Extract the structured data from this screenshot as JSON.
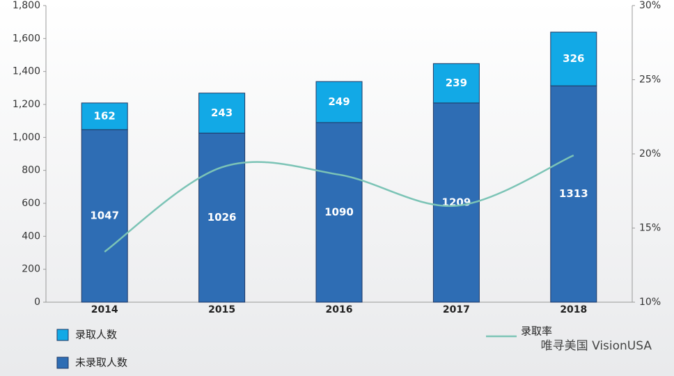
{
  "chart_data": {
    "type": "bar",
    "stacked": true,
    "categories": [
      "2014",
      "2015",
      "2016",
      "2017",
      "2018"
    ],
    "series": [
      {
        "name": "未录取人数",
        "color": "#2e6db4",
        "values": [
          1047,
          1026,
          1090,
          1209,
          1313
        ]
      },
      {
        "name": "录取人数",
        "color": "#12a9e6",
        "values": [
          162,
          243,
          249,
          239,
          326
        ]
      },
      {
        "name": "录取率",
        "type": "line",
        "axis": "y2",
        "color": "#7cc4b6",
        "values": [
          13.4,
          19.1,
          18.6,
          16.5,
          19.9
        ]
      }
    ],
    "ylim": [
      0,
      1800
    ],
    "yticks": [
      0,
      200,
      400,
      600,
      800,
      {
        "value": 1000,
        "label": "1,000"
      },
      {
        "value": 1200,
        "label": "1,200"
      },
      {
        "value": 1400,
        "label": "1,400"
      },
      {
        "value": 1600,
        "label": "1,600"
      },
      {
        "value": 1800,
        "label": "1,800"
      }
    ],
    "y2lim": [
      10,
      30
    ],
    "y2ticks": [
      {
        "value": 10,
        "label": "10%"
      },
      {
        "value": 15,
        "label": "15%"
      },
      {
        "value": 20,
        "label": "20%"
      },
      {
        "value": 25,
        "label": "25%"
      },
      {
        "value": 30,
        "label": "30%"
      }
    ],
    "footer": "唯寻美国 VisionUSA"
  }
}
